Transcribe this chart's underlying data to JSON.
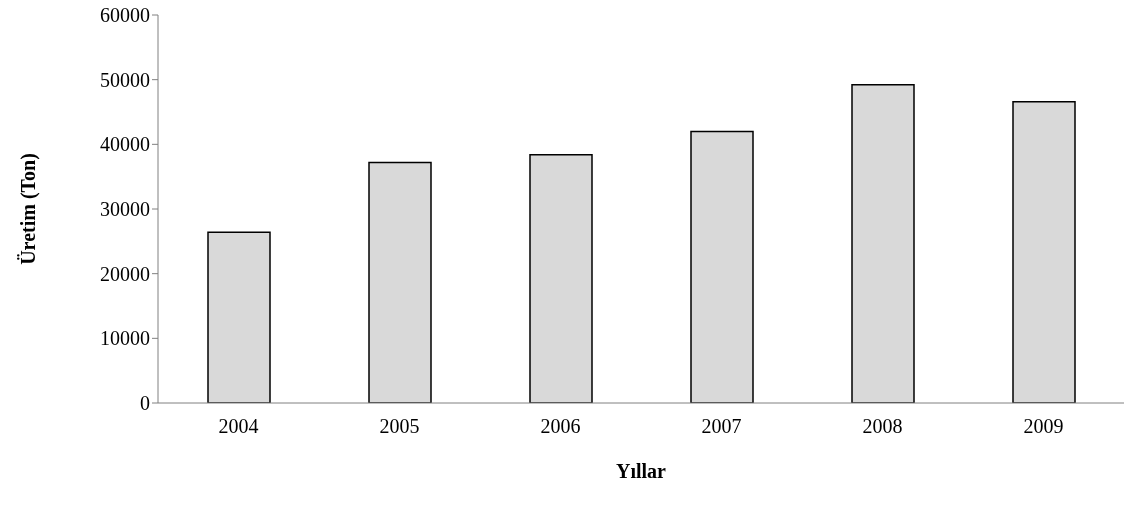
{
  "chart_data": {
    "type": "bar",
    "xlabel": "Yıllar",
    "ylabel": "Üretim (Ton)",
    "categories": [
      "2004",
      "2005",
      "2006",
      "2007",
      "2008",
      "2009"
    ],
    "values": [
      26400,
      37200,
      38400,
      42000,
      49200,
      46600
    ],
    "color": "#d9d9d9",
    "ylim": [
      0,
      60000
    ],
    "yticks": [
      0,
      10000,
      20000,
      30000,
      40000,
      50000,
      60000
    ],
    "grid": false,
    "legend": false
  }
}
